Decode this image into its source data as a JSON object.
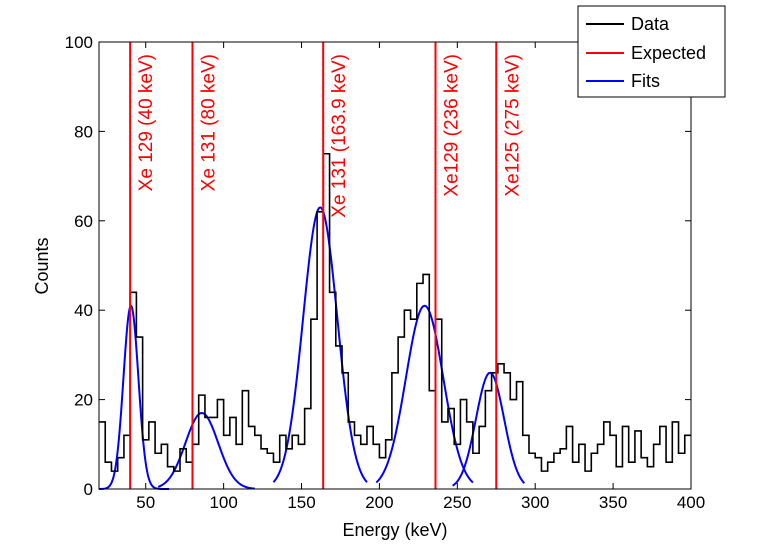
{
  "chart_data": {
    "type": "line",
    "xlabel": "Energy (keV)",
    "ylabel": "Counts",
    "xlim": [
      20,
      400
    ],
    "ylim": [
      0,
      100
    ],
    "xticks": [
      50,
      100,
      150,
      200,
      250,
      300,
      350,
      400
    ],
    "yticks": [
      0,
      20,
      40,
      60,
      80,
      100
    ],
    "grid": false,
    "legend_position": "top-right",
    "colors": {
      "data": "#000000",
      "expected": "#ff0000",
      "fits": "#0000ff"
    },
    "legend": [
      "Data",
      "Expected",
      "Fits"
    ],
    "histogram": {
      "name": "Data",
      "bin_width": 4,
      "x": [
        20,
        24,
        28,
        32,
        36,
        40,
        44,
        48,
        52,
        56,
        60,
        64,
        68,
        72,
        76,
        80,
        84,
        88,
        92,
        96,
        100,
        104,
        108,
        112,
        116,
        120,
        124,
        128,
        132,
        136,
        140,
        144,
        148,
        152,
        156,
        160,
        164,
        168,
        172,
        176,
        180,
        184,
        188,
        192,
        196,
        200,
        204,
        208,
        212,
        216,
        220,
        224,
        228,
        232,
        236,
        240,
        244,
        248,
        252,
        256,
        260,
        264,
        268,
        272,
        276,
        280,
        284,
        288,
        292,
        296,
        300,
        304,
        308,
        312,
        316,
        320,
        324,
        328,
        332,
        336,
        340,
        344,
        348,
        352,
        356,
        360,
        364,
        368,
        372,
        376,
        380,
        384,
        388,
        392,
        396
      ],
      "y": [
        15,
        6,
        4,
        7,
        12,
        44,
        34,
        11,
        15,
        8,
        10,
        5,
        4,
        9,
        6,
        10,
        21,
        16,
        16,
        20,
        12,
        16,
        10,
        22,
        14,
        12,
        9,
        8,
        6,
        12,
        9,
        12,
        10,
        18,
        38,
        62,
        75,
        44,
        32,
        26,
        15,
        12,
        10,
        14,
        10,
        7,
        11,
        26,
        34,
        40,
        38,
        46,
        48,
        22,
        38,
        15,
        18,
        10,
        20,
        15,
        8,
        14,
        22,
        26,
        28,
        26,
        20,
        24,
        12,
        8,
        7,
        4,
        6,
        8,
        9,
        14,
        6,
        10,
        4,
        8,
        10,
        15,
        12,
        5,
        14,
        6,
        13,
        7,
        5,
        10,
        14,
        6,
        15,
        8,
        12
      ]
    },
    "expected_lines": [
      {
        "x": 40,
        "label": "Xe 129 (40 keV)"
      },
      {
        "x": 80,
        "label": "Xe 131 (80 keV)"
      },
      {
        "x": 163.9,
        "label": "Xe 131 (163.9 keV)"
      },
      {
        "x": 236,
        "label": "Xe129 (236 keV)"
      },
      {
        "x": 275,
        "label": "Xe125 (275 keV)"
      }
    ],
    "fits": [
      {
        "name": "Fits",
        "amplitude": 41,
        "mean": 40.5,
        "sigma": 4.8,
        "range": [
          20,
          65
        ]
      },
      {
        "name": "Fits",
        "amplitude": 17,
        "mean": 86,
        "sigma": 10.5,
        "range": [
          58,
          120
        ]
      },
      {
        "name": "Fits",
        "amplitude": 63,
        "mean": 162,
        "sigma": 11,
        "range": [
          132,
          192
        ]
      },
      {
        "name": "Fits",
        "amplitude": 41,
        "mean": 229,
        "sigma": 12,
        "range": [
          198,
          260
        ]
      },
      {
        "name": "Fits",
        "amplitude": 26,
        "mean": 271,
        "sigma": 9,
        "range": [
          247,
          293
        ]
      }
    ]
  }
}
